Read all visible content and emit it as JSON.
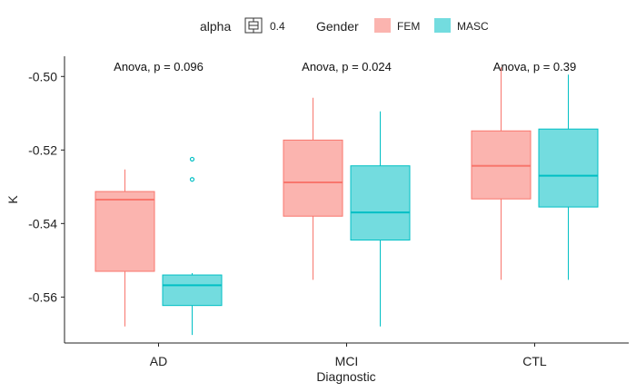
{
  "colors": {
    "FEM": "#F8766D",
    "MASC": "#00BFC4",
    "axis": "#222222"
  },
  "legend": {
    "alpha_title": "alpha",
    "alpha_value": "0.4",
    "gender_title": "Gender",
    "items": [
      "FEM",
      "MASC"
    ]
  },
  "chart_data": {
    "type": "boxplot",
    "xlabel": "Diagnostic",
    "ylabel": "K",
    "ylim": [
      -0.5725,
      -0.4945
    ],
    "yticks": [
      -0.56,
      -0.54,
      -0.52,
      -0.5
    ],
    "ytick_labels": [
      "-0.56",
      "-0.54",
      "-0.52",
      "-0.50"
    ],
    "categories": [
      "AD",
      "MCI",
      "CTL"
    ],
    "annotations": [
      "Anova, p = 0.096",
      "Anova, p = 0.024",
      "Anova, p = 0.39"
    ],
    "legend_position": "top",
    "grid": false,
    "series": [
      {
        "name": "FEM",
        "boxes": [
          {
            "min": -0.568,
            "q1": -0.553,
            "median": -0.5335,
            "q3": -0.5313,
            "max": -0.5253,
            "outliers": []
          },
          {
            "min": -0.5553,
            "q1": -0.538,
            "median": -0.5288,
            "q3": -0.5173,
            "max": -0.5058,
            "outliers": []
          },
          {
            "min": -0.5553,
            "q1": -0.5333,
            "median": -0.5243,
            "q3": -0.5148,
            "max": -0.4975,
            "outliers": []
          }
        ]
      },
      {
        "name": "MASC",
        "boxes": [
          {
            "min": -0.5703,
            "q1": -0.5623,
            "median": -0.5568,
            "q3": -0.554,
            "max": -0.5535,
            "outliers": [
              -0.5225,
              -0.528
            ]
          },
          {
            "min": -0.568,
            "q1": -0.5445,
            "median": -0.537,
            "q3": -0.5243,
            "max": -0.5095,
            "outliers": []
          },
          {
            "min": -0.5553,
            "q1": -0.5355,
            "median": -0.527,
            "q3": -0.5143,
            "max": -0.4995,
            "outliers": []
          }
        ]
      }
    ]
  }
}
